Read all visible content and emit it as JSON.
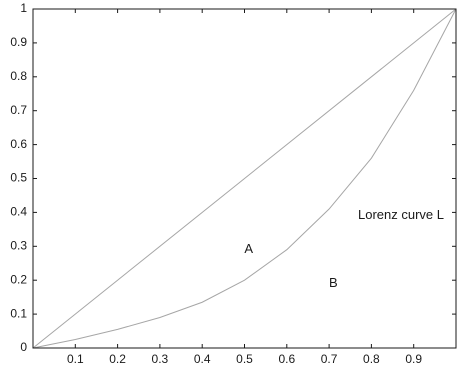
{
  "chart_data": {
    "type": "line",
    "title": "",
    "xlabel": "",
    "ylabel": "",
    "xlim": [
      0,
      1
    ],
    "ylim": [
      0,
      1
    ],
    "grid": false,
    "xticks": [
      "0.1",
      "0.2",
      "0.3",
      "0.4",
      "0.5",
      "0.6",
      "0.7",
      "0.8",
      "0.9"
    ],
    "yticks": [
      "0",
      "0.1",
      "0.2",
      "0.3",
      "0.4",
      "0.5",
      "0.6",
      "0.7",
      "0.8",
      "0.9",
      "1"
    ],
    "series": [
      {
        "x": [
          0,
          1
        ],
        "y": [
          0,
          1
        ],
        "color": "#a6a6a6"
      },
      {
        "x": [
          0,
          0.1,
          0.2,
          0.3,
          0.4,
          0.5,
          0.6,
          0.7,
          0.8,
          0.9,
          1.0
        ],
        "y": [
          0,
          0.025,
          0.055,
          0.09,
          0.135,
          0.2,
          0.29,
          0.41,
          0.56,
          0.76,
          1.0
        ],
        "color": "#a6a6a6"
      }
    ],
    "annotations": [
      {
        "text": "A",
        "x": 0.51,
        "y": 0.29
      },
      {
        "text": "B",
        "x": 0.71,
        "y": 0.19
      },
      {
        "text": "Lorenz curve L",
        "x": 0.87,
        "y": 0.39
      }
    ],
    "colors": {
      "axis": "#1a1a1a",
      "series": "#a6a6a6",
      "text": "#1a1a1a"
    }
  }
}
